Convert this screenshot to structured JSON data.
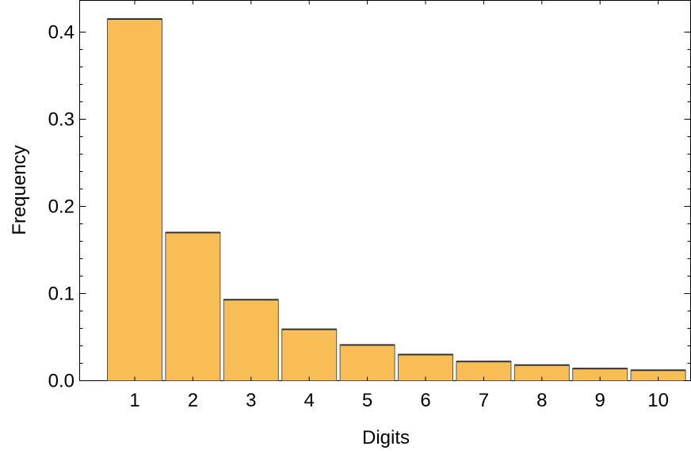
{
  "chart_data": {
    "type": "bar",
    "categories": [
      "1",
      "2",
      "3",
      "4",
      "5",
      "6",
      "7",
      "8",
      "9",
      "10"
    ],
    "values": [
      0.415,
      0.17,
      0.093,
      0.059,
      0.041,
      0.03,
      0.022,
      0.018,
      0.014,
      0.012
    ],
    "title": "",
    "xlabel": "Digits",
    "ylabel": "Frequency",
    "ylim": [
      0,
      0.44
    ],
    "yticks": [
      0.0,
      0.1,
      0.2,
      0.3,
      0.4
    ],
    "ytick_labels": [
      "0.0",
      "0.1",
      "0.2",
      "0.3",
      "0.4"
    ],
    "bar_color": "#f9bd55",
    "grid": false
  }
}
